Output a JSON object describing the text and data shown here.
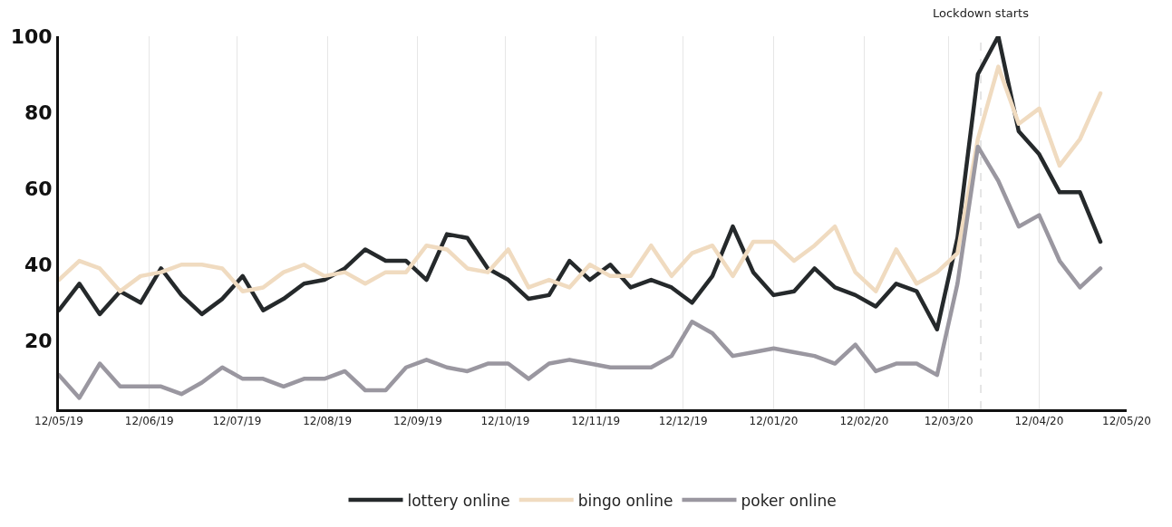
{
  "chart_data": {
    "type": "line",
    "x": [
      "2019-05-12",
      "2019-05-19",
      "2019-05-26",
      "2019-06-02",
      "2019-06-09",
      "2019-06-16",
      "2019-06-23",
      "2019-06-30",
      "2019-07-07",
      "2019-07-14",
      "2019-07-21",
      "2019-07-28",
      "2019-08-04",
      "2019-08-11",
      "2019-08-18",
      "2019-08-25",
      "2019-09-01",
      "2019-09-08",
      "2019-09-15",
      "2019-09-22",
      "2019-09-29",
      "2019-10-06",
      "2019-10-13",
      "2019-10-20",
      "2019-10-27",
      "2019-11-03",
      "2019-11-10",
      "2019-11-17",
      "2019-11-24",
      "2019-12-01",
      "2019-12-08",
      "2019-12-15",
      "2019-12-22",
      "2019-12-29",
      "2020-01-05",
      "2020-01-12",
      "2020-01-19",
      "2020-01-26",
      "2020-02-02",
      "2020-02-09",
      "2020-02-16",
      "2020-02-23",
      "2020-03-01",
      "2020-03-08",
      "2020-03-15",
      "2020-03-22",
      "2020-03-29",
      "2020-04-05",
      "2020-04-12",
      "2020-04-19",
      "2020-04-26",
      "2020-05-03"
    ],
    "series": [
      {
        "name": "lottery online",
        "color": "#25292b",
        "values": [
          28,
          35,
          27,
          33,
          30,
          39,
          32,
          27,
          31,
          37,
          28,
          31,
          35,
          36,
          39,
          44,
          41,
          41,
          36,
          48,
          47,
          39,
          36,
          31,
          32,
          41,
          36,
          40,
          34,
          36,
          34,
          30,
          37,
          50,
          38,
          32,
          33,
          39,
          34,
          32,
          29,
          35,
          33,
          23,
          47,
          90,
          100,
          75,
          69,
          59,
          59,
          46
        ]
      },
      {
        "name": "bingo online",
        "color": "#f0dbc0",
        "values": [
          36,
          41,
          39,
          33,
          37,
          38,
          40,
          40,
          39,
          33,
          34,
          38,
          40,
          37,
          38,
          35,
          38,
          38,
          45,
          44,
          39,
          38,
          44,
          34,
          36,
          34,
          40,
          37,
          37,
          45,
          37,
          43,
          45,
          37,
          46,
          46,
          41,
          45,
          50,
          38,
          33,
          44,
          35,
          38,
          43,
          73,
          92,
          77,
          81,
          66,
          73,
          85
        ]
      },
      {
        "name": "poker online",
        "color": "#9a97a0",
        "values": [
          11,
          5,
          14,
          8,
          8,
          8,
          6,
          9,
          13,
          10,
          10,
          8,
          10,
          10,
          12,
          7,
          7,
          13,
          15,
          13,
          12,
          14,
          14,
          10,
          14,
          15,
          14,
          13,
          13,
          13,
          16,
          25,
          22,
          16,
          17,
          18,
          17,
          16,
          14,
          19,
          12,
          14,
          14,
          11,
          35,
          71,
          62,
          50,
          53,
          41,
          34,
          39
        ]
      }
    ],
    "xlim": [
      "2019-05-12",
      "2020-05-12"
    ],
    "xticks": [
      {
        "value": "2019-05-12",
        "label": "12/05/19"
      },
      {
        "value": "2019-06-12",
        "label": "12/06/19"
      },
      {
        "value": "2019-07-12",
        "label": "12/07/19"
      },
      {
        "value": "2019-08-12",
        "label": "12/08/19"
      },
      {
        "value": "2019-09-12",
        "label": "12/09/19"
      },
      {
        "value": "2019-10-12",
        "label": "12/10/19"
      },
      {
        "value": "2019-11-12",
        "label": "12/11/19"
      },
      {
        "value": "2019-12-12",
        "label": "12/12/19"
      },
      {
        "value": "2020-01-12",
        "label": "12/01/20"
      },
      {
        "value": "2020-02-12",
        "label": "12/02/20"
      },
      {
        "value": "2020-03-12",
        "label": "12/03/20"
      },
      {
        "value": "2020-04-12",
        "label": "12/04/20"
      },
      {
        "value": "2020-05-12",
        "label": "12/05/20"
      }
    ],
    "ylim": [
      2,
      100
    ],
    "yticks": [
      20,
      40,
      60,
      80,
      100
    ],
    "grid": "x",
    "legend": "bottom",
    "marker": "none",
    "line_style": "solid",
    "ref_lines": [
      {
        "axis": "x",
        "value": "2020-03-23",
        "label": "Lockdown starts",
        "color": "#dddddd",
        "line_style": "dashed"
      }
    ]
  }
}
